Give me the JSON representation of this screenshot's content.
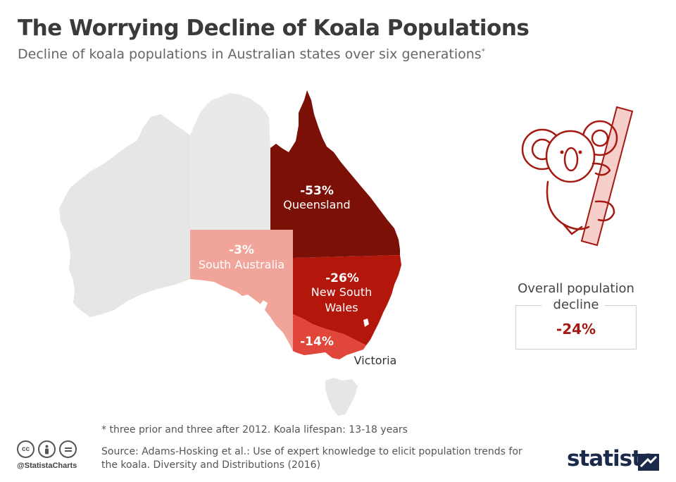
{
  "header": {
    "title": "The Worrying Decline of Koala Populations",
    "subtitle": "Decline of koala populations in Australian states over six generations",
    "subtitle_marker": "*"
  },
  "map": {
    "background_color": "#e6e6e6",
    "regions": [
      {
        "key": "queensland",
        "name": "Queensland",
        "decline": "-53%",
        "decline_value": -53,
        "color": "#7a1006"
      },
      {
        "key": "nsw",
        "name_line1": "New South",
        "name_line2": "Wales",
        "decline": "-26%",
        "decline_value": -26,
        "color": "#b3160b"
      },
      {
        "key": "victoria",
        "name": "Victoria",
        "decline": "-14%",
        "decline_value": -14,
        "color": "#e1463a"
      },
      {
        "key": "south_australia",
        "name": "South Australia",
        "decline": "-3%",
        "decline_value": -3,
        "color": "#f0a49a"
      }
    ]
  },
  "overall": {
    "label": "Overall population decline",
    "value": "-24%"
  },
  "footer": {
    "footnote": "* three prior and three after 2012. Koala lifespan: 13-18 years",
    "source": "Source: Adams-Hosking et al.: Use of expert knowledge to elicit population trends for the koala. Diversity and Distributions (2016)",
    "handle": "@StatistaCharts",
    "brand": "statista",
    "license_icons": [
      "cc-icon",
      "attribution-icon",
      "no-derivatives-icon"
    ]
  },
  "colors": {
    "accent": "#a41a12",
    "koala_line": "#a41a12",
    "tree": "#f6cfca"
  }
}
